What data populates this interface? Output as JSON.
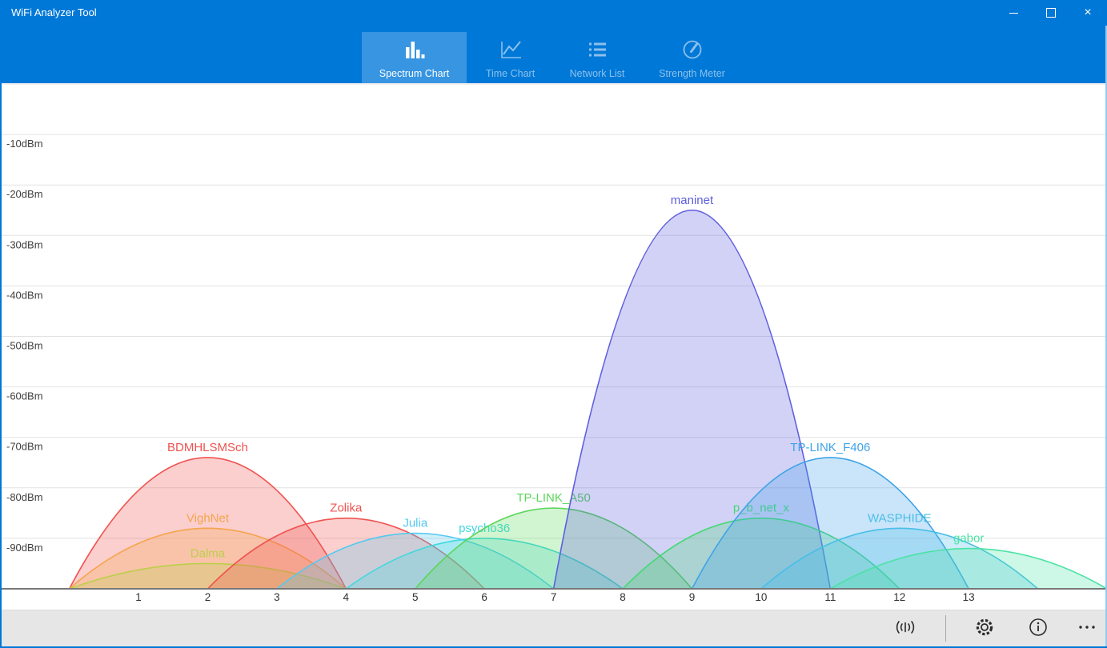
{
  "window": {
    "title": "WiFi Analyzer Tool",
    "controls": [
      {
        "name": "minimize"
      },
      {
        "name": "maximize"
      },
      {
        "name": "close"
      }
    ]
  },
  "colors": {
    "titlebar": "#0078D7",
    "active_tab": "#3795E2",
    "inactive_tab_text": "#8CC0EC",
    "gridline": "#E2E2E2",
    "axis_line": "#787878",
    "axis_text": "#404040",
    "bottom_bar": "#E6E6E6",
    "icon": "#2B2B2B"
  },
  "tabs": [
    {
      "label": "Spectrum Chart",
      "icon": "bar-chart-icon",
      "active": true
    },
    {
      "label": "Time Chart",
      "icon": "line-chart-icon",
      "active": false
    },
    {
      "label": "Network List",
      "icon": "list-icon",
      "active": false
    },
    {
      "label": "Strength Meter",
      "icon": "gauge-icon",
      "active": false
    }
  ],
  "chart_data": {
    "type": "area",
    "description": "WiFi spectrum: signal strength (dBm) vs channel, one parabolic lobe per network, each lobe spanning +/-2 channels around its center channel",
    "x_range": [
      0,
      15
    ],
    "y_range": [
      -100,
      0
    ],
    "grid": true,
    "x_ticks": [
      "1",
      "2",
      "3",
      "4",
      "5",
      "6",
      "7",
      "8",
      "9",
      "10",
      "11",
      "12",
      "13"
    ],
    "y_ticks": [
      {
        "label": "-10dBm",
        "dbm": -10
      },
      {
        "label": "-20dBm",
        "dbm": -20
      },
      {
        "label": "-30dBm",
        "dbm": -30
      },
      {
        "label": "-40dBm",
        "dbm": -40
      },
      {
        "label": "-50dBm",
        "dbm": -50
      },
      {
        "label": "-60dBm",
        "dbm": -60
      },
      {
        "label": "-70dBm",
        "dbm": -70
      },
      {
        "label": "-80dBm",
        "dbm": -80
      },
      {
        "label": "-90dBm",
        "dbm": -90
      }
    ],
    "networks": [
      {
        "name": "BDMHLSMSch",
        "channel": 2,
        "signal_dbm": -74,
        "color": "#EF5350"
      },
      {
        "name": "VighNet",
        "channel": 2,
        "signal_dbm": -88,
        "color": "#F5A44D"
      },
      {
        "name": "Dalma",
        "channel": 2,
        "signal_dbm": -95,
        "color": "#BCCF4A"
      },
      {
        "name": "Zolika",
        "channel": 4,
        "signal_dbm": -86,
        "color": "#EF5350"
      },
      {
        "name": "Julia",
        "channel": 5,
        "signal_dbm": -89,
        "color": "#53C9F0"
      },
      {
        "name": "psycho36",
        "channel": 6,
        "signal_dbm": -90,
        "color": "#3FD8DE"
      },
      {
        "name": "TP-LINK_A50",
        "channel": 7,
        "signal_dbm": -84,
        "color": "#5BD65B"
      },
      {
        "name": "maninet",
        "channel": 9,
        "signal_dbm": -25,
        "color": "#5E5EE0"
      },
      {
        "name": "p_b_net_x",
        "channel": 10,
        "signal_dbm": -86,
        "color": "#44D973"
      },
      {
        "name": "TP-LINK_F406",
        "channel": 11,
        "signal_dbm": -74,
        "color": "#3FA3E8"
      },
      {
        "name": "WASPHIDE",
        "channel": 12,
        "signal_dbm": -88,
        "color": "#49BEE8"
      },
      {
        "name": "gabor",
        "channel": 13,
        "signal_dbm": -92,
        "color": "#4BE3A4"
      }
    ]
  },
  "bottom_bar": {
    "icons": [
      {
        "name": "wifi-scan-icon"
      },
      {
        "name": "settings-icon"
      },
      {
        "name": "info-icon"
      },
      {
        "name": "more-icon"
      }
    ]
  }
}
